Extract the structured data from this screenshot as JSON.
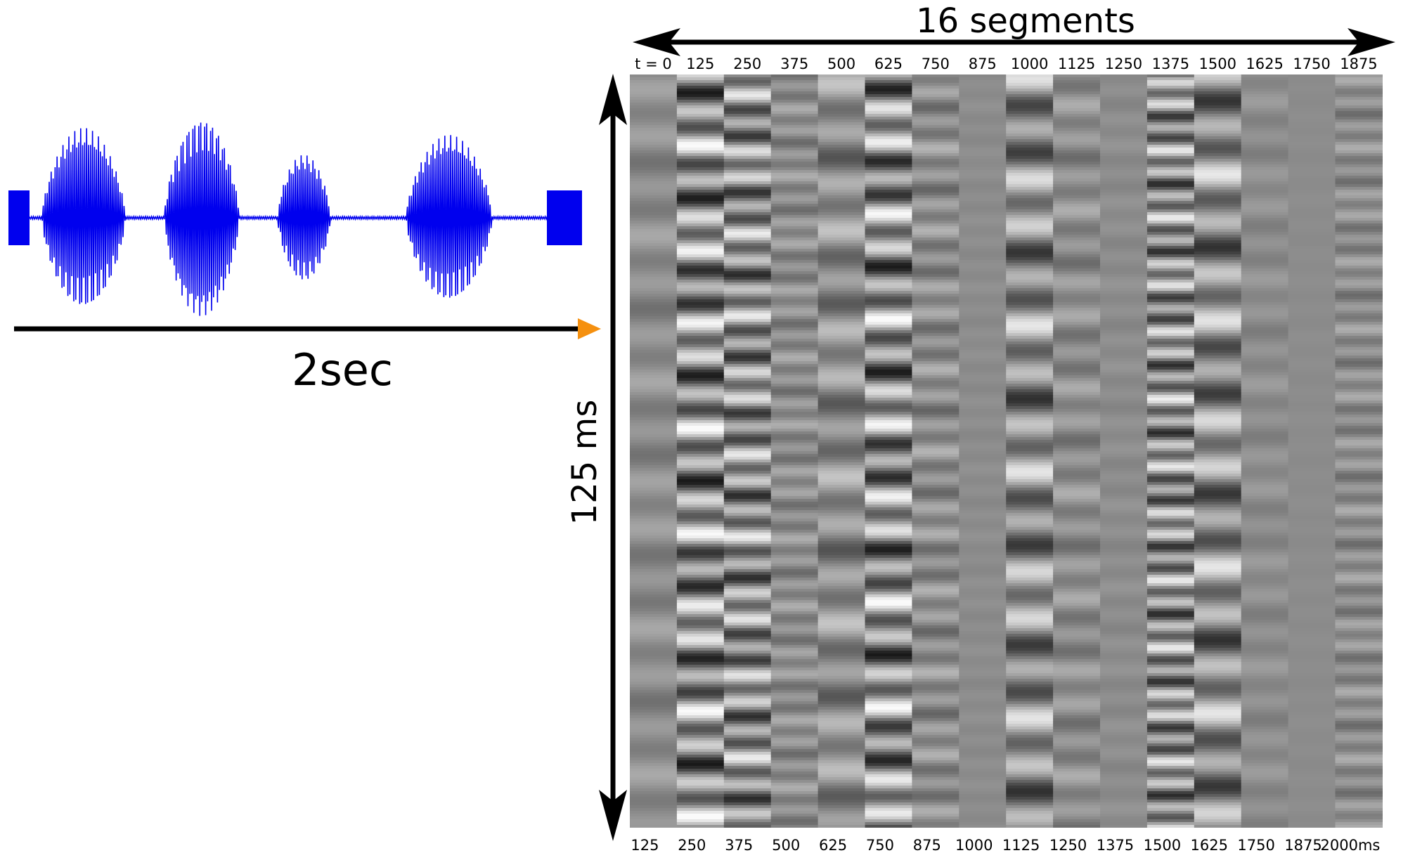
{
  "diagram": {
    "waveform": {
      "duration_label": "2sec",
      "wave_color": "#0000ee",
      "arrow_head_color": "#f5900f"
    },
    "matrix": {
      "segments_label": "16 segments",
      "height_label": "125 ms",
      "top_labels": [
        "t = 0",
        "125",
        "250",
        "375",
        "500",
        "625",
        "750",
        "875",
        "1000",
        "1125",
        "1250",
        "1375",
        "1500",
        "1625",
        "1750",
        "1875"
      ],
      "bottom_labels": [
        "125",
        "250",
        "375",
        "500",
        "625",
        "750",
        "875",
        "1000",
        "1125",
        "1250",
        "1375",
        "1500",
        "1625",
        "1750",
        "1875",
        "2000ms"
      ],
      "column_contrast": [
        0.25,
        1.0,
        0.85,
        0.3,
        0.5,
        1.0,
        0.35,
        0.05,
        0.8,
        0.3,
        0.08,
        0.85,
        0.8,
        0.15,
        0.02,
        0.3
      ],
      "background_gray": "#8c8c8c"
    }
  }
}
